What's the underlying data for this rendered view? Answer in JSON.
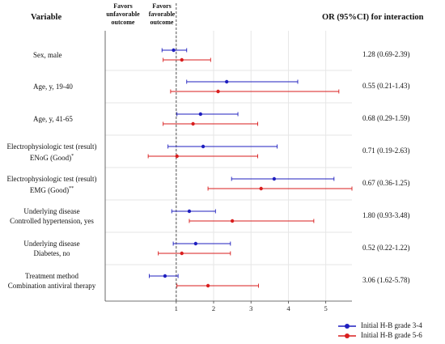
{
  "header": {
    "variable": "Variable",
    "favors_unfavorable": "Favors unfavorable outcome",
    "favors_favorable": "Favors favorable outcome",
    "or_header": "OR (95%CI) for interaction"
  },
  "rows": [
    {
      "lines": [
        "Sex, male"
      ],
      "sup": "",
      "or": "1.28 (0.69-2.39)"
    },
    {
      "lines": [
        "Age, y, 19-40"
      ],
      "sup": "",
      "or": "0.55 (0.21-1.43)"
    },
    {
      "lines": [
        "Age, y, 41-65"
      ],
      "sup": "",
      "or": "0.68 (0.29-1.59)"
    },
    {
      "lines": [
        "Electrophysiologic test (result)",
        "ENoG (Good)"
      ],
      "sup": "*",
      "or": "0.71 (0.19-2.63)"
    },
    {
      "lines": [
        "Electrophysiologic test (result)",
        "EMG (Good)"
      ],
      "sup": "**",
      "or": "0.67 (0.36-1.25)"
    },
    {
      "lines": [
        "Underlying disease",
        "Controlled hypertension, yes"
      ],
      "sup": "",
      "or": "1.80 (0.93-3.48)"
    },
    {
      "lines": [
        "Underlying disease",
        "Diabetes, no"
      ],
      "sup": "",
      "or": "0.52 (0.22-1.22)"
    },
    {
      "lines": [
        "Treatment method",
        "Combination antiviral therapy"
      ],
      "sup": "",
      "or": "3.06 (1.62-5.78)"
    }
  ],
  "legend": [
    {
      "label": "Initial H-B grade 3-4",
      "color": "#1f1fbf"
    },
    {
      "label": "Initial H-B grade 5-6",
      "color": "#d91e1e"
    }
  ],
  "colors": {
    "grade34": "#1f1fbf",
    "grade56": "#d91e1e",
    "reference": "#555555",
    "grid": "#e6e6e6"
  },
  "chart_data": {
    "type": "scatter",
    "subtype": "forest-plot",
    "xlim": [
      -0.9,
      5.7
    ],
    "xticks": [
      1,
      2,
      3,
      4,
      5
    ],
    "reference_line": 1,
    "grid": true,
    "legend_position": "bottom-right",
    "categories": [
      "Sex, male",
      "Age, y, 19-40",
      "Age, y, 41-65",
      "Electrophysiologic test (result) ENoG (Good)*",
      "Electrophysiologic test (result) EMG (Good)**",
      "Underlying disease Controlled hypertension, yes",
      "Underlying disease Diabetes, no",
      "Treatment method Combination antiviral therapy"
    ],
    "series": [
      {
        "name": "Initial H-B grade 3-4",
        "estimates": [
          0.93,
          2.35,
          1.65,
          1.72,
          3.62,
          1.35,
          1.52,
          0.7
        ],
        "lower": [
          0.62,
          1.28,
          1.02,
          0.78,
          2.48,
          0.88,
          0.92,
          0.28
        ],
        "upper": [
          1.28,
          4.25,
          2.65,
          3.7,
          5.22,
          2.05,
          2.45,
          1.05
        ]
      },
      {
        "name": "Initial H-B grade 5-6",
        "estimates": [
          1.15,
          2.12,
          1.45,
          1.02,
          3.27,
          2.5,
          1.15,
          1.85
        ],
        "lower": [
          0.65,
          0.85,
          0.65,
          0.25,
          1.85,
          1.35,
          0.52,
          1.02
        ],
        "upper": [
          1.92,
          5.35,
          3.18,
          3.18,
          5.7,
          4.68,
          2.45,
          3.2
        ]
      }
    ]
  }
}
